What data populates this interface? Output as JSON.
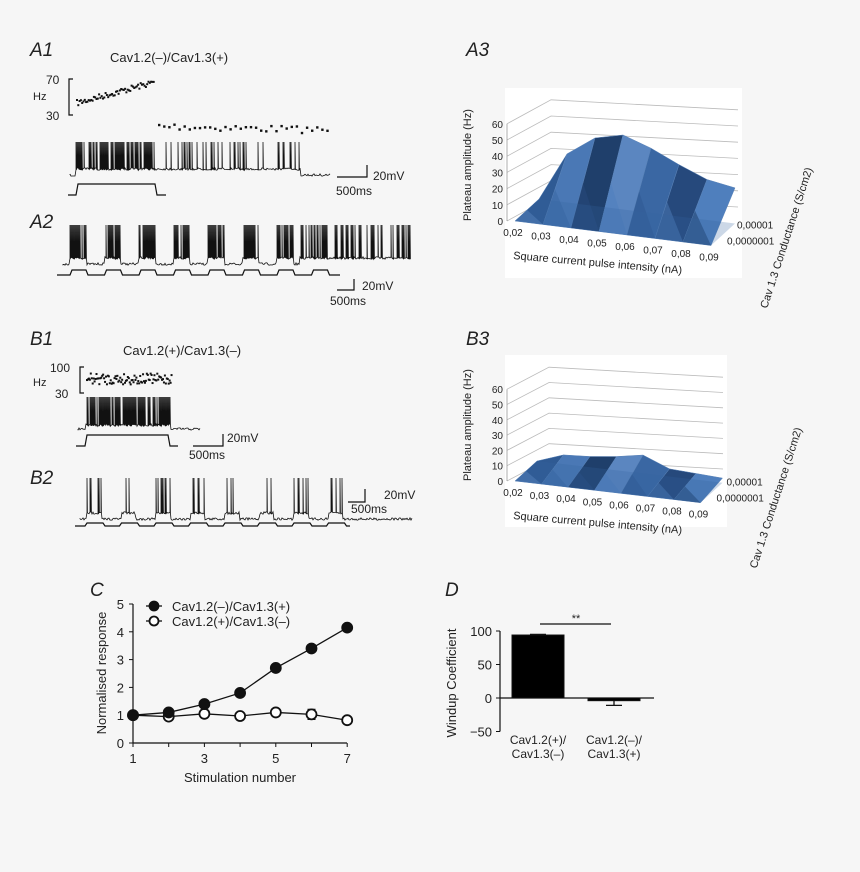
{
  "panels": {
    "A1": {
      "label": "A1",
      "title": "Cav1.2(–)/Cav1.3(+)",
      "hz_unit": "Hz",
      "hz_top": "70",
      "hz_bottom": "30",
      "scale_v": "20mV",
      "scale_t": "500ms"
    },
    "A2": {
      "label": "A2",
      "scale_v": "20mV",
      "scale_t": "500ms"
    },
    "A3": {
      "label": "A3"
    },
    "B1": {
      "label": "B1",
      "title": "Cav1.2(+)/Cav1.3(–)",
      "hz_unit": "Hz",
      "hz_top": "100",
      "hz_bottom": "30",
      "scale_v": "20mV",
      "scale_t": "500ms"
    },
    "B2": {
      "label": "B2",
      "scale_v": "20mV",
      "scale_t": "500ms"
    },
    "B3": {
      "label": "B3"
    },
    "C": {
      "label": "C"
    },
    "D": {
      "label": "D"
    }
  },
  "chart_data": [
    {
      "id": "A3",
      "type": "surface3d",
      "xlabel": "Square current pulse intensity (nA)",
      "ylabel": "Plateau amplitude (Hz)",
      "zlabel": "Cav 1.3 Conductance (S/cm2)",
      "x_ticks": [
        "0,02",
        "0,03",
        "0,04",
        "0,05",
        "0,06",
        "0,07",
        "0,08",
        "0,09"
      ],
      "y_ticks": [
        "0",
        "10",
        "20",
        "30",
        "40",
        "50",
        "60"
      ],
      "depth_ticks": [
        "0,00001",
        "0,0000001"
      ],
      "ylim": [
        0,
        60
      ],
      "rows": [
        {
          "conductance": "0,0000001",
          "values": [
            0,
            0,
            0,
            0,
            0,
            0,
            0,
            0
          ]
        },
        {
          "conductance": "0,00001",
          "values": [
            0,
            30,
            42,
            46,
            40,
            32,
            25,
            22
          ]
        }
      ],
      "color": "#3d6aa8"
    },
    {
      "id": "B3",
      "type": "surface3d",
      "xlabel": "Square current pulse intensity (nA)",
      "ylabel": "Plateau amplitude (Hz)",
      "zlabel": "Cav 1.3 Conductance (S/cm2)",
      "x_ticks": [
        "0,02",
        "0,03",
        "0,04",
        "0,05",
        "0,06",
        "0,07",
        "0,08",
        "0,09"
      ],
      "y_ticks": [
        "0",
        "10",
        "20",
        "30",
        "40",
        "50",
        "60"
      ],
      "depth_ticks": [
        "0,00001",
        "0,0000001"
      ],
      "ylim": [
        0,
        60
      ],
      "rows": [
        {
          "conductance": "0,0000001",
          "values": [
            0,
            0,
            0,
            0,
            0,
            0,
            0,
            0
          ]
        },
        {
          "conductance": "0,00001",
          "values": [
            0,
            6,
            7,
            9,
            12,
            5,
            4,
            3
          ]
        }
      ],
      "color": "#3d6aa8"
    },
    {
      "id": "C",
      "type": "line",
      "xlabel": "Stimulation number",
      "ylabel": "Normalised response",
      "x": [
        1,
        2,
        3,
        4,
        5,
        6,
        7
      ],
      "x_ticks": [
        "1",
        "3",
        "5",
        "7"
      ],
      "y_ticks": [
        "0",
        "1",
        "2",
        "3",
        "4",
        "5"
      ],
      "xlim": [
        1,
        7
      ],
      "ylim": [
        0,
        5
      ],
      "legend_position": "top-left",
      "series": [
        {
          "name": "Cav1.2(–)/Cav1.3(+)",
          "marker": "filled-circle",
          "values": [
            1.0,
            1.1,
            1.4,
            1.8,
            2.7,
            3.4,
            4.15
          ],
          "errors": [
            0,
            0.05,
            0.08,
            0.05,
            0.08,
            0.06,
            0.06
          ]
        },
        {
          "name": "Cav1.2(+)/Cav1.3(–)",
          "marker": "open-circle",
          "values": [
            1.0,
            0.95,
            1.05,
            0.97,
            1.1,
            1.03,
            0.82
          ],
          "errors": [
            0,
            0.04,
            0.12,
            0.04,
            0.13,
            0.18,
            0.05
          ]
        }
      ]
    },
    {
      "id": "D",
      "type": "bar",
      "ylabel": "Windup Coefficient",
      "categories": [
        [
          "Cav1.2(+)/",
          "Cav1.3(–)"
        ],
        [
          "Cav1.2(–)/",
          "Cav1.3(+)"
        ]
      ],
      "values": [
        94,
        -4
      ],
      "errors": [
        1,
        7
      ],
      "y_ticks": [
        "100",
        "50",
        "0",
        "−50"
      ],
      "ylim": [
        -50,
        100
      ],
      "significance": "**",
      "color": "#000000"
    }
  ]
}
